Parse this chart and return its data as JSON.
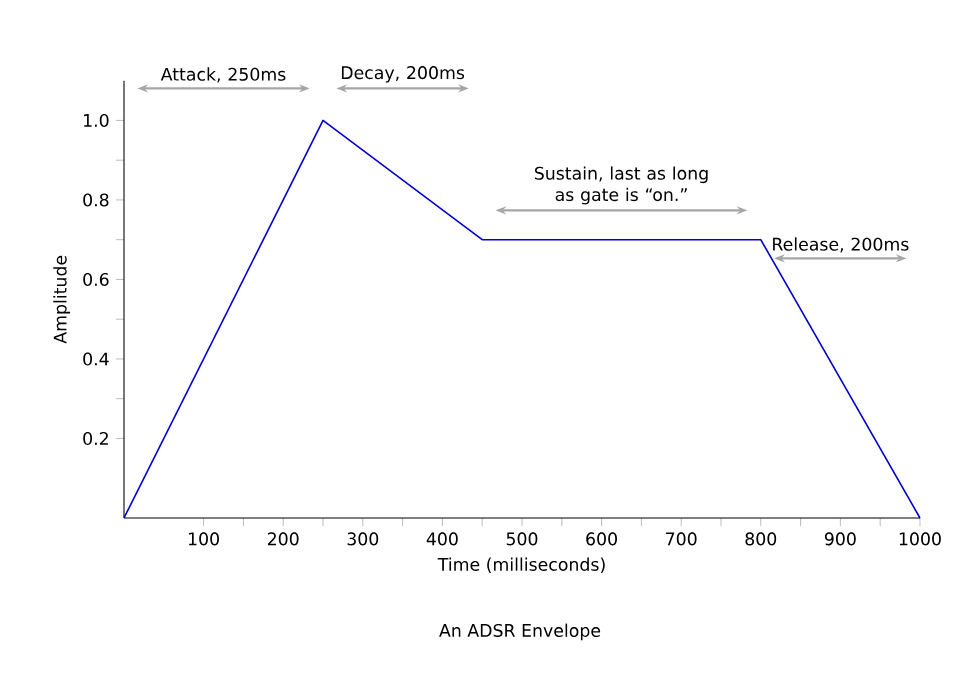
{
  "chart_data": {
    "type": "line",
    "xlabel": "Time (milliseconds)",
    "ylabel": "Amplitude",
    "x": [
      0,
      250,
      450,
      800,
      1000
    ],
    "values": [
      0,
      1,
      0.7,
      0.7,
      0
    ],
    "color": "#0000cc",
    "xlim": [
      0,
      1000
    ],
    "ylim": [
      0,
      1.1
    ],
    "xticks": [
      100,
      200,
      300,
      400,
      500,
      600,
      700,
      800,
      900,
      1000
    ],
    "yticks": [
      0.2,
      0.4,
      0.6,
      0.8,
      {
        "value": 1.0,
        "label": "1.0"
      }
    ],
    "annotations": [
      "Attack, 250ms",
      "Decay, 200ms",
      "Sustain, last as long as gate is “on.”",
      "Release, 200ms",
      "An ADSR Envelope"
    ]
  }
}
